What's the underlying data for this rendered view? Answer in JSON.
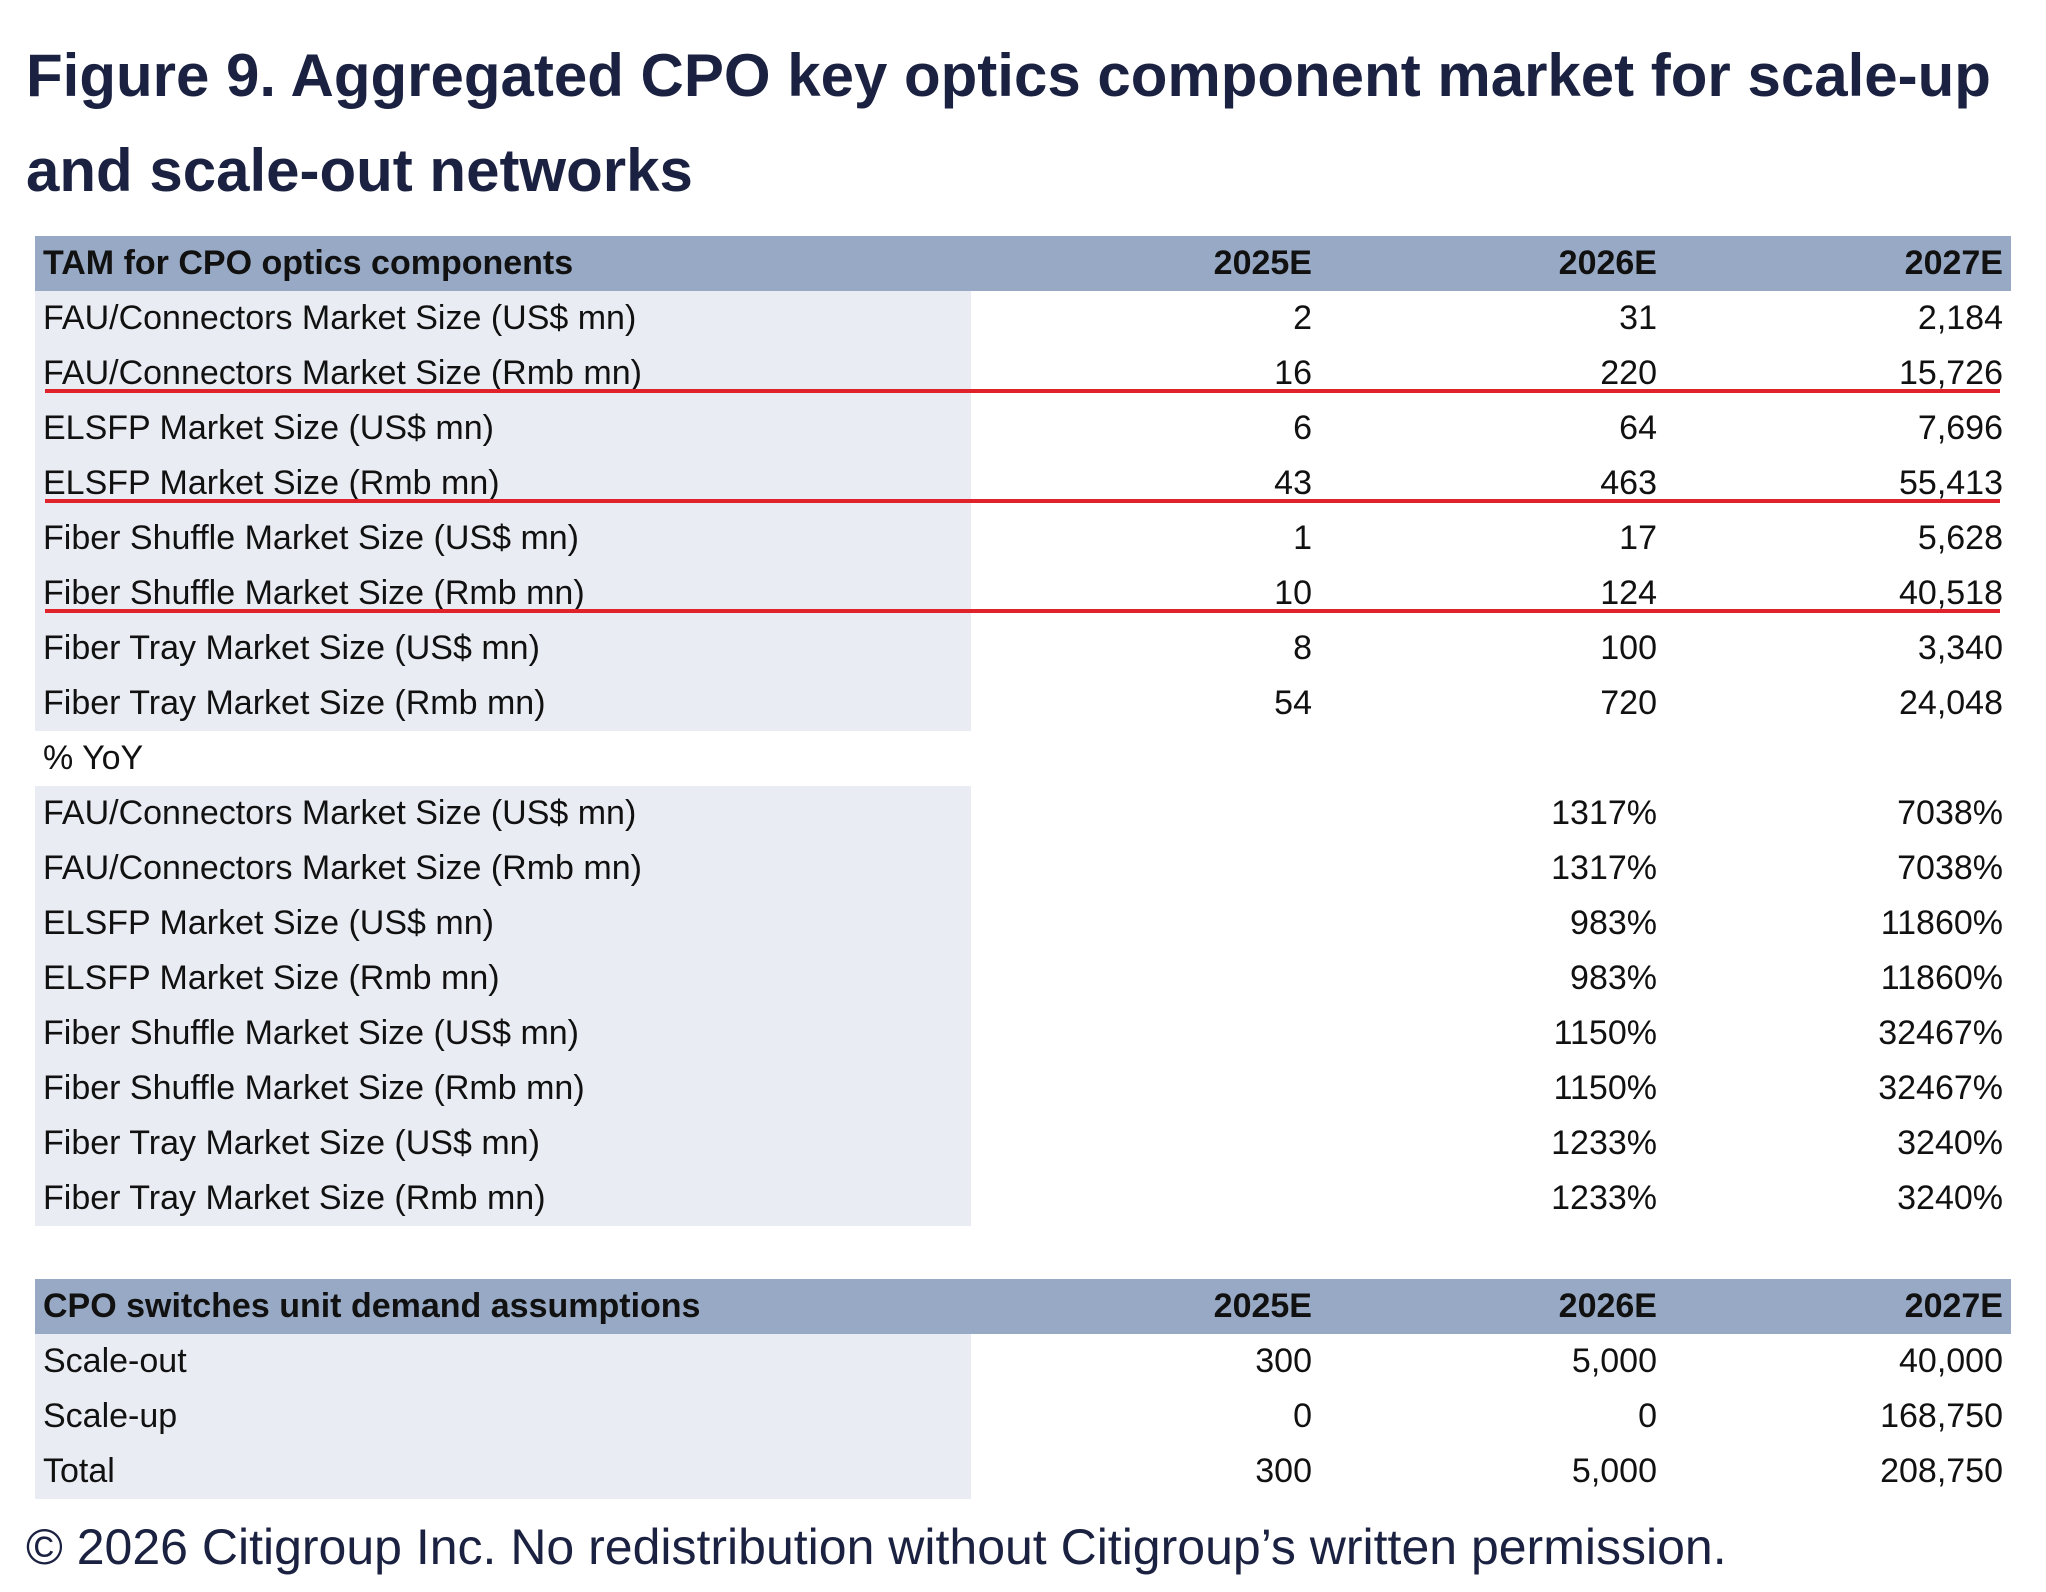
{
  "title": "Figure 9. Aggregated CPO key optics component market for scale-up and scale-out networks",
  "table1": {
    "header": [
      "TAM for CPO optics components",
      "2025E",
      "2026E",
      "2027E"
    ],
    "rows": [
      [
        "FAU/Connectors Market Size (US$ mn)",
        "2",
        "31",
        "2,184"
      ],
      [
        "FAU/Connectors Market Size (Rmb mn)",
        "16",
        "220",
        "15,726"
      ],
      [
        "ELSFP Market Size (US$ mn)",
        "6",
        "64",
        "7,696"
      ],
      [
        "ELSFP Market Size (Rmb mn)",
        "43",
        "463",
        "55,413"
      ],
      [
        "Fiber Shuffle Market Size (US$ mn)",
        "1",
        "17",
        "5,628"
      ],
      [
        "Fiber Shuffle Market Size (Rmb mn)",
        "10",
        "124",
        "40,518"
      ],
      [
        "Fiber Tray Market Size (US$ mn)",
        "8",
        "100",
        "3,340"
      ],
      [
        "Fiber Tray Market Size (Rmb mn)",
        "54",
        "720",
        "24,048"
      ]
    ],
    "yoy_label": "% YoY",
    "yoy_rows": [
      [
        "FAU/Connectors Market Size (US$ mn)",
        "1317%",
        "7038%"
      ],
      [
        "FAU/Connectors Market Size (Rmb mn)",
        "1317%",
        "7038%"
      ],
      [
        "ELSFP Market Size (US$ mn)",
        "983%",
        "11860%"
      ],
      [
        "ELSFP Market Size (Rmb mn)",
        "983%",
        "11860%"
      ],
      [
        "Fiber Shuffle Market Size (US$ mn)",
        "1150%",
        "32467%"
      ],
      [
        "Fiber Shuffle Market Size (Rmb mn)",
        "1150%",
        "32467%"
      ],
      [
        "Fiber Tray Market Size (US$ mn)",
        "1233%",
        "3240%"
      ],
      [
        "Fiber Tray Market Size (Rmb mn)",
        "1233%",
        "3240%"
      ]
    ]
  },
  "table2": {
    "header": [
      "CPO switches unit demand assumptions",
      "2025E",
      "2026E",
      "2027E"
    ],
    "rows": [
      [
        "Scale-out",
        "300",
        "5,000",
        "40,000"
      ],
      [
        "Scale-up",
        "0",
        "0",
        "168,750"
      ],
      [
        "Total",
        "300",
        "5,000",
        "208,750"
      ]
    ]
  },
  "footer": "© 2026 Citigroup Inc. No redistribution without Citigroup’s written permission."
}
